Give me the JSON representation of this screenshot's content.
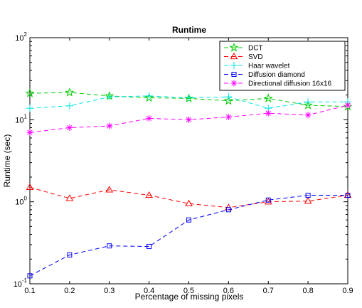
{
  "chart_data": {
    "type": "line",
    "title": "Runtime",
    "xlabel": "Percentage of missing pixels",
    "ylabel": "Runtime (sec)",
    "xlim": [
      0.1,
      0.9
    ],
    "ylim": [
      0.1,
      100
    ],
    "yscale": "log",
    "grid": false,
    "legend_position": "top-right",
    "x_ticks": [
      "0.1",
      "0.2",
      "0.3",
      "0.4",
      "0.5",
      "0.6",
      "0.7",
      "0.8",
      "0.9"
    ],
    "y_ticks": [
      {
        "base": "10",
        "exp": "-1"
      },
      {
        "base": "10",
        "exp": "0"
      },
      {
        "base": "10",
        "exp": "1"
      },
      {
        "base": "10",
        "exp": "2"
      }
    ],
    "x": [
      0.1,
      0.2,
      0.3,
      0.4,
      0.5,
      0.6,
      0.7,
      0.8,
      0.9
    ],
    "series": [
      {
        "name": "DCT",
        "color": "#00cc00",
        "marker": "star",
        "values": [
          21,
          21.5,
          19.5,
          18.5,
          18.2,
          17,
          18.2,
          15,
          14.5
        ]
      },
      {
        "name": "SVD",
        "color": "#ff0000",
        "marker": "triangle",
        "values": [
          1.5,
          1.1,
          1.4,
          1.2,
          0.95,
          0.85,
          1.0,
          1.02,
          1.2
        ]
      },
      {
        "name": "Haar wavelet",
        "color": "#00e5e5",
        "marker": "plus",
        "values": [
          13.8,
          14.8,
          19,
          19.5,
          18.5,
          19,
          13.8,
          16.5,
          16.5
        ]
      },
      {
        "name": "Diffusion diamond",
        "color": "#0000ff",
        "marker": "square",
        "values": [
          0.125,
          0.225,
          0.29,
          0.285,
          0.6,
          0.8,
          1.05,
          1.2,
          1.2
        ]
      },
      {
        "name": "Directional diffusion 16x16",
        "color": "#ff00ff",
        "marker": "asterisk",
        "values": [
          7,
          8,
          8.4,
          10.4,
          10,
          10.8,
          12,
          11.4,
          15
        ]
      }
    ]
  }
}
